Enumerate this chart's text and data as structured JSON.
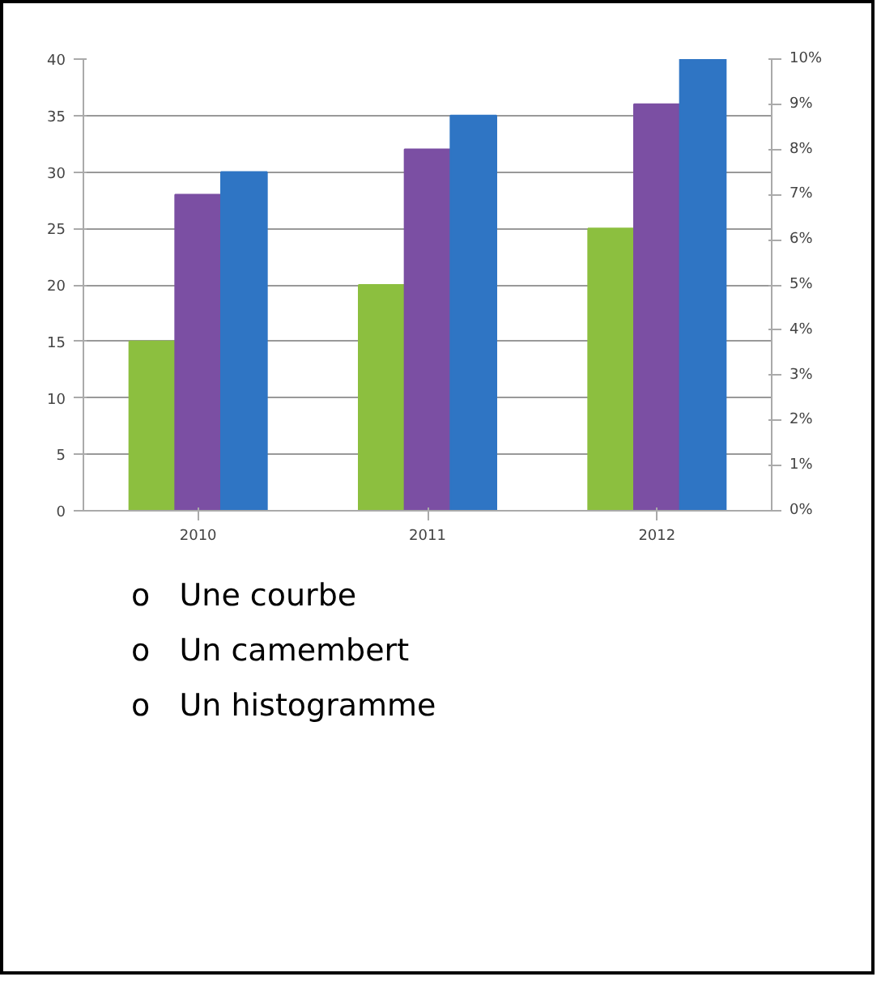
{
  "chart_data": {
    "type": "bar",
    "categories": [
      "2010",
      "2011",
      "2012"
    ],
    "series": [
      {
        "color": "#8cbf3f",
        "values": [
          15,
          20,
          25
        ]
      },
      {
        "color": "#7b4fa3",
        "values": [
          28,
          32,
          36
        ]
      },
      {
        "color": "#2f75c4",
        "values": [
          30,
          35,
          40
        ]
      }
    ],
    "ylim": [
      0,
      40
    ],
    "yticks": [
      0,
      5,
      10,
      15,
      20,
      25,
      30,
      35,
      40
    ],
    "y2lim": [
      0,
      10
    ],
    "y2ticks": [
      {
        "value": 0,
        "label": "0%"
      },
      {
        "value": 1,
        "label": "1%"
      },
      {
        "value": 2,
        "label": "2%"
      },
      {
        "value": 3,
        "label": "3%"
      },
      {
        "value": 4,
        "label": "4%"
      },
      {
        "value": 5,
        "label": "5%"
      },
      {
        "value": 6,
        "label": "6%"
      },
      {
        "value": 7,
        "label": "7%"
      },
      {
        "value": 8,
        "label": "8%"
      },
      {
        "value": 9,
        "label": "9%"
      },
      {
        "value": 10,
        "label": "10%"
      }
    ],
    "grid": "y",
    "annotations": [
      "o   Une courbe",
      "o   Un camembert",
      "o   Un histogramme"
    ]
  }
}
